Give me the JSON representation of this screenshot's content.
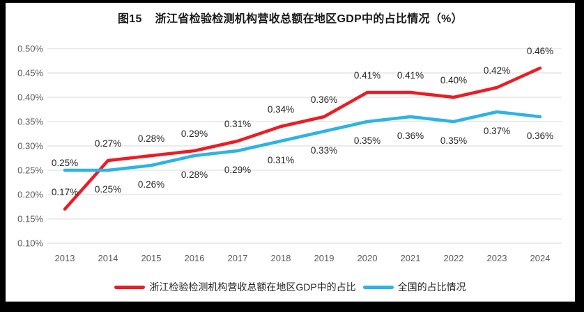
{
  "title": "图15    浙江省检验检测机构营收总额在地区GDP中的占比情况（%）",
  "chart_data": {
    "type": "line",
    "title": "图15 浙江省检验检测机构营收总额在地区GDP中的占比情况（%）",
    "x": [
      "2013",
      "2014",
      "2015",
      "2016",
      "2017",
      "2018",
      "2019",
      "2020",
      "2021",
      "2022",
      "2023",
      "2024"
    ],
    "series": [
      {
        "name": "浙江检验检测机构营收总额在地区GDP中的占比",
        "color": "#ec1c24",
        "values": [
          0.17,
          0.27,
          0.28,
          0.29,
          0.31,
          0.34,
          0.36,
          0.41,
          0.41,
          0.4,
          0.42,
          0.46
        ],
        "labels": [
          "0.17%",
          "0.27%",
          "0.28%",
          "0.29%",
          "0.31%",
          "0.34%",
          "0.36%",
          "0.41%",
          "0.41%",
          "0.40%",
          "0.42%",
          "0.46%"
        ],
        "label_position": "above"
      },
      {
        "name": "全国的占比情况",
        "color": "#2db3e6",
        "values": [
          0.25,
          0.25,
          0.26,
          0.28,
          0.29,
          0.31,
          0.33,
          0.35,
          0.36,
          0.35,
          0.37,
          0.36
        ],
        "labels": [
          "0.25%",
          "0.25%",
          "0.26%",
          "0.28%",
          "0.29%",
          "0.31%",
          "0.33%",
          "0.35%",
          "0.36%",
          "0.35%",
          "0.37%",
          "0.36%"
        ],
        "label_position": "below",
        "label_position_overrides": {
          "0": "near-above"
        }
      }
    ],
    "xlabel": "",
    "ylabel": "",
    "ylim": [
      0.1,
      0.5
    ],
    "ytick_step": 0.05,
    "yticks": [
      {
        "value": 0.5,
        "label": "0.50%"
      },
      {
        "value": 0.45,
        "label": "0.45%"
      },
      {
        "value": 0.4,
        "label": "0.40%"
      },
      {
        "value": 0.35,
        "label": "0.35%"
      },
      {
        "value": 0.3,
        "label": "0.30%"
      },
      {
        "value": 0.25,
        "label": "0.25%"
      },
      {
        "value": 0.2,
        "label": "0.20%"
      },
      {
        "value": 0.15,
        "label": "0.15%"
      },
      {
        "value": 0.1,
        "label": "0.10%"
      }
    ],
    "grid": true,
    "legend_position": "bottom",
    "colors": {
      "gridline": "#d9d9d9",
      "tick": "#595959",
      "datalabel": "#262626",
      "background": "#ffffff",
      "frame": "#000000"
    }
  }
}
